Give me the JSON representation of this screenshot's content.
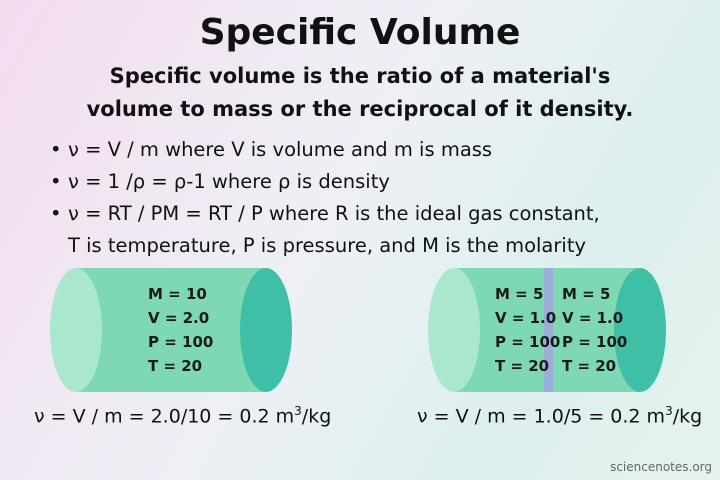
{
  "header": {
    "title": "Specific Volume",
    "subtitle": [
      "Specific volume is the ratio of a material's",
      "volume to mass or the reciprocal of it density."
    ]
  },
  "bullets": [
    [
      "ν = V / m where V is volume and m is mass"
    ],
    [
      "ν = 1 /ρ = ρ-1 where ρ is density"
    ],
    [
      "ν = RT / PM = RT / P where R is the ideal gas constant,",
      "T is temperature, P is pressure, and M is the molarity"
    ]
  ],
  "cylinders": [
    {
      "labels": [
        [
          "M = 10",
          "V = 2.0",
          "P = 100",
          "T = 20"
        ]
      ],
      "formula": {
        "text": "ν = V / m = 2.0/10 = 0.2 m",
        "sup": "3",
        "unit": "/kg"
      }
    },
    {
      "labels": [
        [
          "M = 5",
          "V = 1.0",
          "P = 100",
          "T = 20"
        ],
        [
          "M = 5",
          "V = 1.0",
          "P = 100",
          "T = 20"
        ]
      ],
      "formula": {
        "text": "ν = V / m = 1.0/5 = 0.2 m",
        "sup": "3",
        "unit": "/kg"
      }
    }
  ],
  "footer": "sciencenotes.org"
}
